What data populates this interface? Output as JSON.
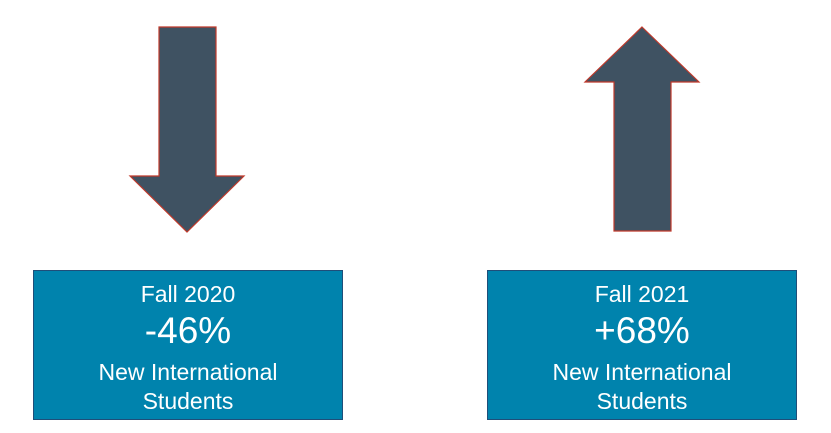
{
  "colors": {
    "arrow_fill": "#3f5262",
    "arrow_outline": "#c0392b",
    "box_fill": "#0083ad",
    "box_text": "#ffffff"
  },
  "indicators": [
    {
      "direction": "down",
      "icon": "arrow-down-icon",
      "period": "Fall 2020",
      "change": "-46%",
      "caption_line1": "New International",
      "caption_line2": "Students"
    },
    {
      "direction": "up",
      "icon": "arrow-up-icon",
      "period": "Fall 2021",
      "change": "+68%",
      "caption_line1": "New International",
      "caption_line2": "Students"
    }
  ]
}
